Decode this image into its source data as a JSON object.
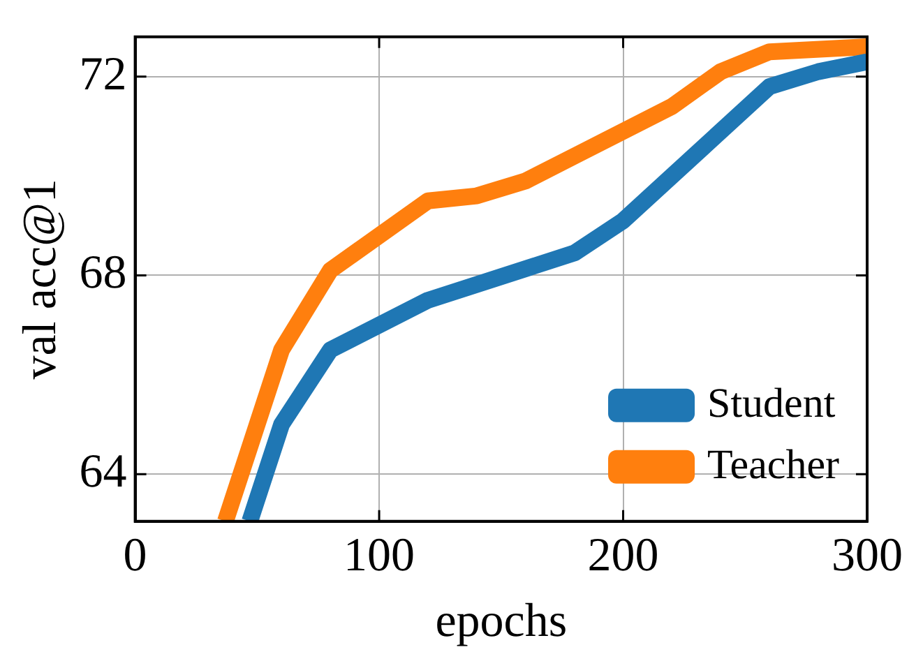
{
  "chart_data": {
    "type": "line",
    "xlabel": "epochs",
    "ylabel": "val acc@1",
    "xlim": [
      0,
      300
    ],
    "ylim": [
      63.05,
      72.8
    ],
    "xticks": [
      0,
      100,
      200,
      300
    ],
    "yticks": [
      64,
      68,
      72
    ],
    "grid": true,
    "legend": "bottom right",
    "line_style": "solid",
    "marker": "none",
    "series": [
      {
        "name": "Student",
        "color": "#1f77b4",
        "x": [
          47,
          60,
          80,
          120,
          180,
          200,
          260,
          280,
          300
        ],
        "values": [
          63.05,
          65.0,
          66.5,
          67.5,
          68.45,
          69.1,
          71.8,
          72.1,
          72.3
        ]
      },
      {
        "name": "Teacher",
        "color": "#ff7f0e",
        "x": [
          37,
          60,
          80,
          120,
          140,
          160,
          180,
          220,
          240,
          260,
          300
        ],
        "values": [
          63.05,
          66.5,
          68.1,
          69.5,
          69.6,
          69.9,
          70.4,
          71.4,
          72.1,
          72.5,
          72.6
        ]
      }
    ]
  }
}
